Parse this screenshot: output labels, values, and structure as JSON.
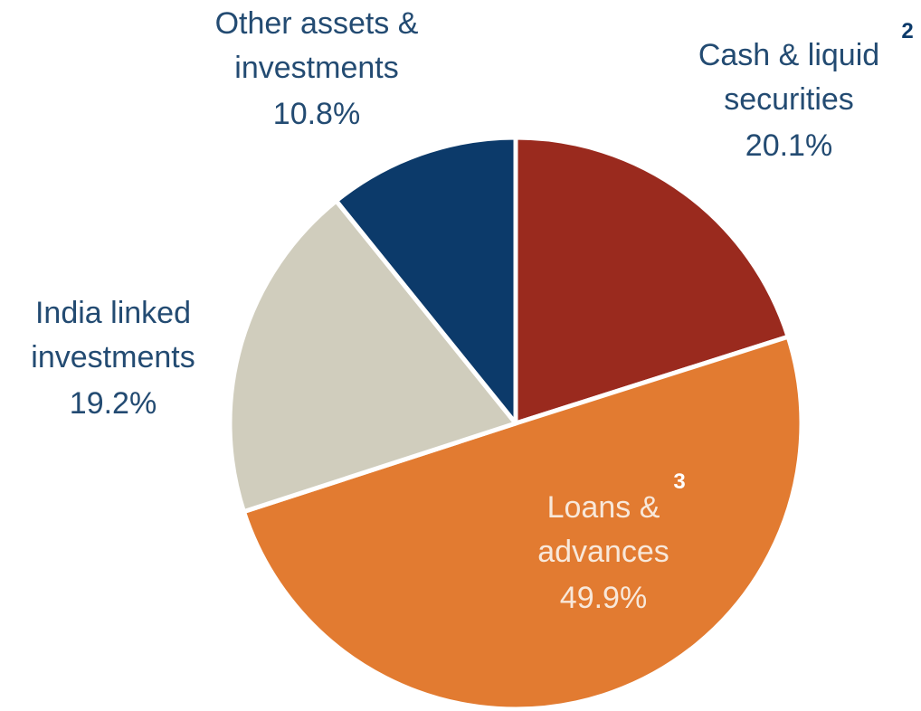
{
  "chart_data": {
    "type": "pie",
    "categories": [
      "Cash & liquid securities",
      "Loans & advances",
      "India linked investments",
      "Other assets & investments"
    ],
    "values": [
      20.1,
      49.9,
      19.2,
      10.8
    ],
    "value_labels": [
      "20.1%",
      "49.9%",
      "19.2%",
      "10.8%"
    ],
    "notes": [
      "2",
      "3",
      null,
      null
    ],
    "colors": [
      "#9a2a1e",
      "#e27b31",
      "#d0cdbd",
      "#0c3a6a"
    ]
  }
}
